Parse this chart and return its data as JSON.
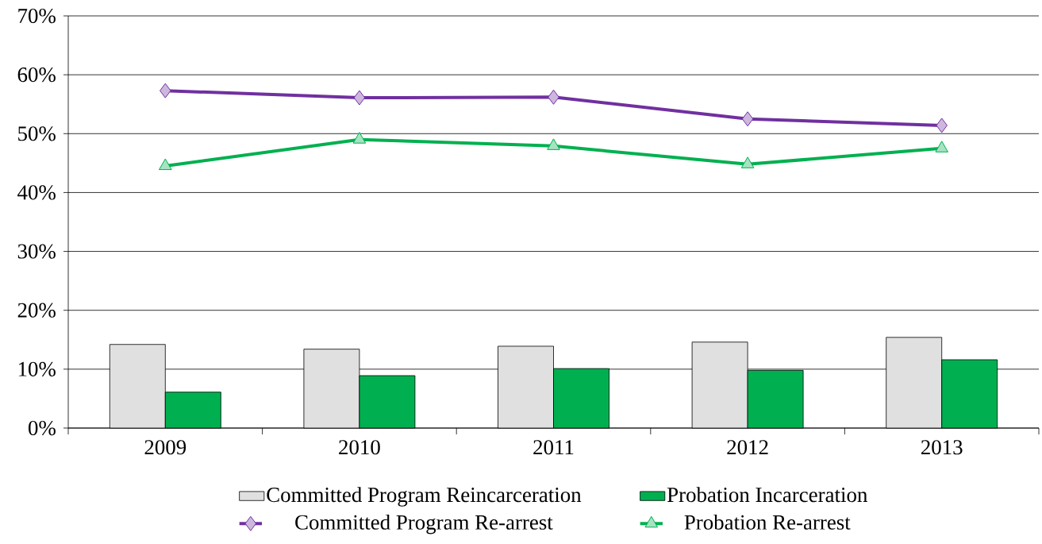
{
  "chart_data": {
    "type": "bar",
    "categories": [
      "2009",
      "2010",
      "2011",
      "2012",
      "2013"
    ],
    "series": [
      {
        "name": "Committed Program Reincarceration",
        "color": "#e0e0e0",
        "values": [
          14.2,
          13.4,
          13.9,
          14.6,
          15.4
        ]
      },
      {
        "name": "Probation Incarceration",
        "color": "#00b050",
        "values": [
          6.1,
          8.9,
          10.1,
          9.8,
          11.6
        ]
      },
      {
        "name": "Committed Program Re-arrest",
        "type": "line",
        "color": "#7030a0",
        "marker": "diamond",
        "values": [
          57.3,
          56.1,
          56.2,
          52.5,
          51.4
        ]
      },
      {
        "name": "Probation Re-arrest",
        "type": "line",
        "color": "#00b050",
        "marker": "triangle",
        "values": [
          44.5,
          49.0,
          47.9,
          44.8,
          47.5
        ]
      }
    ],
    "ylim": [
      0,
      70
    ],
    "yticks": [
      {
        "value": 0,
        "label": "0%"
      },
      {
        "value": 10,
        "label": "10%"
      },
      {
        "value": 20,
        "label": "20%"
      },
      {
        "value": 30,
        "label": "30%"
      },
      {
        "value": 40,
        "label": "40%"
      },
      {
        "value": 50,
        "label": "50%"
      },
      {
        "value": 60,
        "label": "60%"
      },
      {
        "value": 70,
        "label": "70%"
      }
    ],
    "grid": "y",
    "legend": "bottom"
  }
}
